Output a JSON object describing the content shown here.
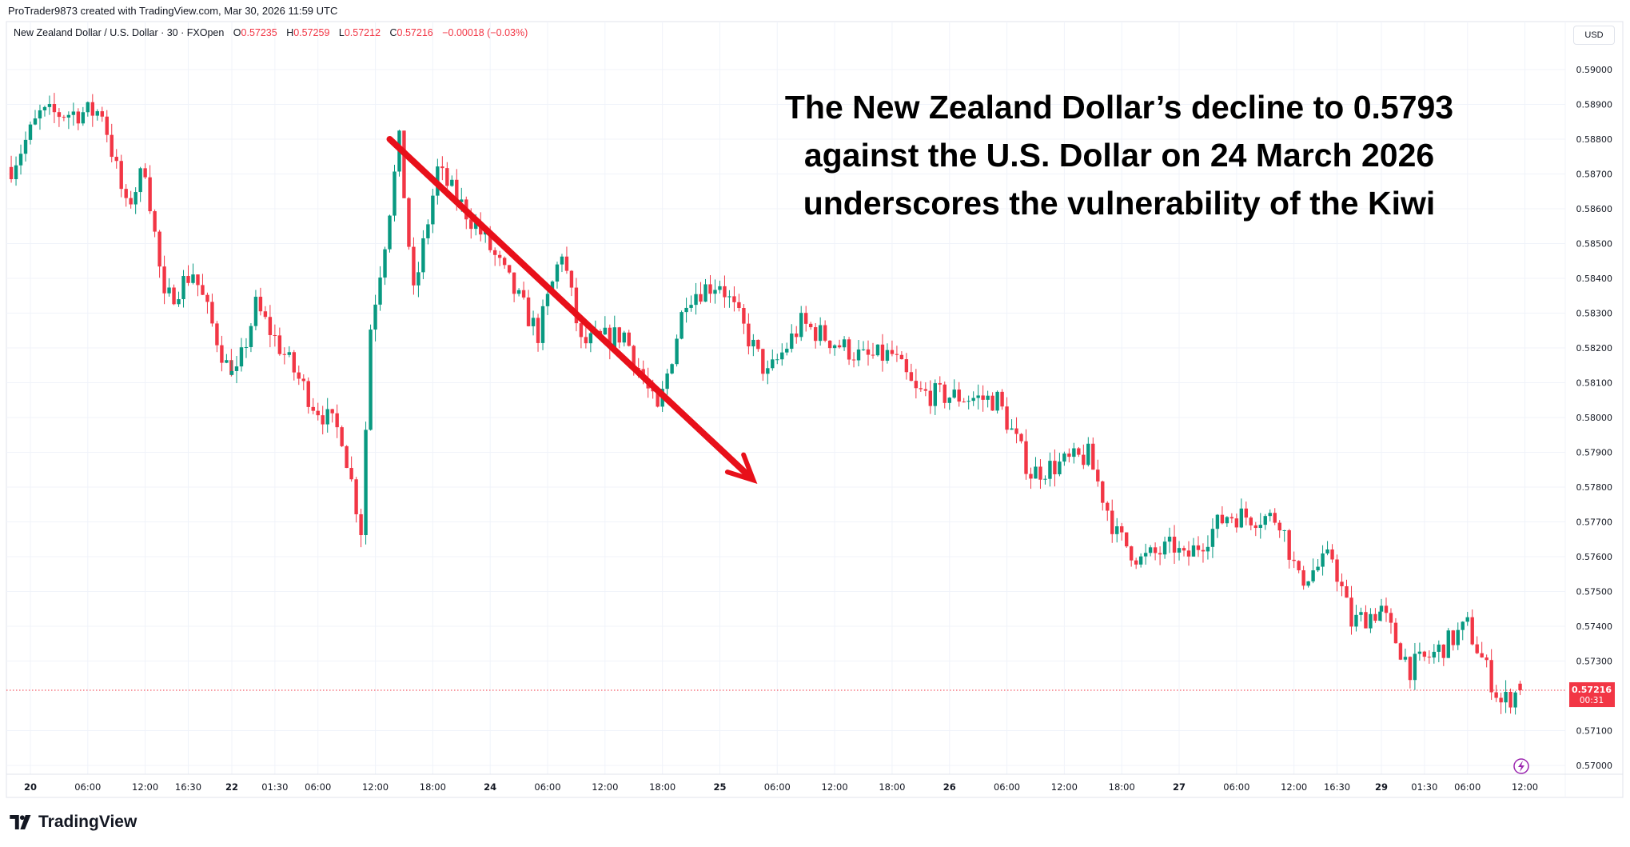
{
  "credit": "ProTrader9873 created with TradingView.com, Mar 30, 2026 11:59 UTC",
  "legend": {
    "symbol": "New Zealand Dollar / U.S. Dollar · 30 · FXOpen",
    "open_label": "O",
    "open": "0.57235",
    "high_label": "H",
    "high": "0.57259",
    "low_label": "L",
    "low": "0.57212",
    "close_label": "C",
    "close": "0.57216",
    "change": "−0.00018 (−0.03%)"
  },
  "currency_button": "USD",
  "headline": {
    "line1": "The New Zealand Dollar’s decline to 0.5793",
    "line2": "against the U.S. Dollar on 24 March 2026",
    "line3": "underscores the vulnerability of the Kiwi"
  },
  "brand": "TradingView",
  "colors": {
    "up": "#089981",
    "down": "#f23645",
    "arrow": "#e8101a",
    "lightning": "#9c27b0",
    "grid": "#f0f3fa"
  },
  "icons": {
    "lightning": "lightning-icon",
    "logo": "tradingview-logo-icon"
  },
  "chart_data": {
    "type": "candlestick",
    "interval": "30",
    "y_ticks": [
      "0.59000",
      "0.58900",
      "0.58800",
      "0.58700",
      "0.58600",
      "0.58500",
      "0.58400",
      "0.58300",
      "0.58200",
      "0.58100",
      "0.58000",
      "0.57900",
      "0.57800",
      "0.57700",
      "0.57600",
      "0.57500",
      "0.57400",
      "0.57300",
      "0.57100",
      "0.57000"
    ],
    "ylim": [
      0.57,
      0.59
    ],
    "x_ticks": [
      {
        "label": "20",
        "time": "2026-03-20T00:00",
        "bold": true
      },
      {
        "label": "06:00",
        "time": "2026-03-20T06:00"
      },
      {
        "label": "12:00",
        "time": "2026-03-20T12:00"
      },
      {
        "label": "16:30",
        "time": "2026-03-20T16:30"
      },
      {
        "label": "22",
        "time": "2026-03-22T21:00",
        "bold": true
      },
      {
        "label": "01:30",
        "time": "2026-03-23T01:30"
      },
      {
        "label": "06:00",
        "time": "2026-03-23T06:00"
      },
      {
        "label": "12:00",
        "time": "2026-03-23T12:00"
      },
      {
        "label": "18:00",
        "time": "2026-03-23T18:00"
      },
      {
        "label": "24",
        "time": "2026-03-24T00:00",
        "bold": true
      },
      {
        "label": "06:00",
        "time": "2026-03-24T06:00"
      },
      {
        "label": "12:00",
        "time": "2026-03-24T12:00"
      },
      {
        "label": "18:00",
        "time": "2026-03-24T18:00"
      },
      {
        "label": "25",
        "time": "2026-03-25T00:00",
        "bold": true
      },
      {
        "label": "06:00",
        "time": "2026-03-25T06:00"
      },
      {
        "label": "12:00",
        "time": "2026-03-25T12:00"
      },
      {
        "label": "18:00",
        "time": "2026-03-25T18:00"
      },
      {
        "label": "26",
        "time": "2026-03-26T00:00",
        "bold": true
      },
      {
        "label": "06:00",
        "time": "2026-03-26T06:00"
      },
      {
        "label": "12:00",
        "time": "2026-03-26T12:00"
      },
      {
        "label": "18:00",
        "time": "2026-03-26T18:00"
      },
      {
        "label": "27",
        "time": "2026-03-27T00:00",
        "bold": true
      },
      {
        "label": "06:00",
        "time": "2026-03-27T06:00"
      },
      {
        "label": "12:00",
        "time": "2026-03-27T12:00"
      },
      {
        "label": "16:30",
        "time": "2026-03-27T16:30"
      },
      {
        "label": "29",
        "time": "2026-03-29T21:00",
        "bold": true
      },
      {
        "label": "01:30",
        "time": "2026-03-30T01:30"
      },
      {
        "label": "06:00",
        "time": "2026-03-30T06:00"
      },
      {
        "label": "12:00",
        "time": "2026-03-30T12:00"
      }
    ],
    "approx_close_path": [
      [
        "2026-03-19T22:00",
        0.5872
      ],
      [
        "2026-03-20T01:00",
        0.5887
      ],
      [
        "2026-03-20T07:30",
        0.5888
      ],
      [
        "2026-03-20T10:00",
        0.586
      ],
      [
        "2026-03-20T12:00",
        0.5872
      ],
      [
        "2026-03-20T14:00",
        0.5833
      ],
      [
        "2026-03-20T17:00",
        0.5842
      ],
      [
        "2026-03-20T20:30",
        0.5815
      ],
      [
        "2026-03-22T21:30",
        0.5812
      ],
      [
        "2026-03-22T23:30",
        0.5832
      ],
      [
        "2026-03-23T05:30",
        0.5804
      ],
      [
        "2026-03-23T08:30",
        0.5795
      ],
      [
        "2026-03-23T10:30",
        0.5768
      ],
      [
        "2026-03-23T11:30",
        0.5826
      ],
      [
        "2026-03-23T13:00",
        0.5851
      ],
      [
        "2026-03-23T14:30",
        0.5879
      ],
      [
        "2026-03-23T16:00",
        0.5835
      ],
      [
        "2026-03-23T18:30",
        0.5871
      ],
      [
        "2026-03-23T23:30",
        0.5851
      ],
      [
        "2026-03-24T05:00",
        0.5824
      ],
      [
        "2026-03-24T07:30",
        0.5848
      ],
      [
        "2026-03-24T09:30",
        0.5821
      ],
      [
        "2026-03-24T14:00",
        0.5824
      ],
      [
        "2026-03-24T17:30",
        0.5801
      ],
      [
        "2026-03-24T20:30",
        0.5835
      ],
      [
        "2026-03-25T00:00",
        0.5839
      ],
      [
        "2026-03-25T05:00",
        0.5812
      ],
      [
        "2026-03-25T08:30",
        0.5827
      ],
      [
        "2026-03-25T15:00",
        0.5817
      ],
      [
        "2026-03-25T18:00",
        0.5818
      ],
      [
        "2026-03-25T20:30",
        0.5807
      ],
      [
        "2026-03-26T05:00",
        0.5805
      ],
      [
        "2026-03-26T08:30",
        0.5784
      ],
      [
        "2026-03-26T14:30",
        0.5789
      ],
      [
        "2026-03-26T17:30",
        0.5766
      ],
      [
        "2026-03-26T20:00",
        0.5759
      ],
      [
        "2026-03-26T23:30",
        0.5763
      ],
      [
        "2026-03-27T00:30",
        0.5759
      ],
      [
        "2026-03-27T05:00",
        0.5772
      ],
      [
        "2026-03-27T10:30",
        0.5771
      ],
      [
        "2026-03-27T12:30",
        0.5753
      ],
      [
        "2026-03-27T16:00",
        0.576
      ],
      [
        "2026-03-27T18:00",
        0.5741
      ],
      [
        "2026-03-27T20:30",
        0.5744
      ],
      [
        "2026-03-29T21:00",
        0.5744
      ],
      [
        "2026-03-30T00:00",
        0.5728
      ],
      [
        "2026-03-30T02:30",
        0.5732
      ],
      [
        "2026-03-30T06:00",
        0.574
      ],
      [
        "2026-03-30T09:30",
        0.5718
      ],
      [
        "2026-03-30T11:30",
        0.57216
      ]
    ],
    "last_price": "0.57216",
    "countdown": "00:31",
    "annotation": "downward-trend-arrow",
    "arrow_from": [
      "2026-03-23T13:30",
      0.588
    ],
    "arrow_to": [
      "2026-03-25T03:30",
      0.5782
    ],
    "grid": true
  }
}
